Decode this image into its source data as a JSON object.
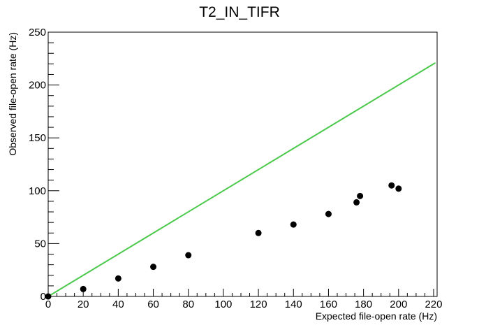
{
  "chart_data": {
    "type": "scatter",
    "title": "T2_IN_TIFR",
    "xlabel": "Expected file-open rate (Hz)",
    "ylabel": "Observed file-open rate (Hz)",
    "xlim": [
      0,
      222
    ],
    "ylim": [
      0,
      250
    ],
    "xticks": [
      0,
      20,
      40,
      60,
      80,
      100,
      120,
      140,
      160,
      180,
      200,
      220
    ],
    "yticks": [
      0,
      50,
      100,
      150,
      200,
      250
    ],
    "grid": false,
    "legend": "none",
    "series": [
      {
        "kind": "points",
        "color": "#000000",
        "x": [
          0,
          20,
          40,
          60,
          80,
          120,
          140,
          160,
          176,
          178,
          196,
          200
        ],
        "y": [
          0,
          7,
          17,
          28,
          39,
          60,
          68,
          78,
          89,
          95,
          105,
          102
        ]
      },
      {
        "kind": "line",
        "color": "#4cc94c",
        "x": [
          0,
          221
        ],
        "y": [
          0,
          221
        ]
      }
    ]
  }
}
